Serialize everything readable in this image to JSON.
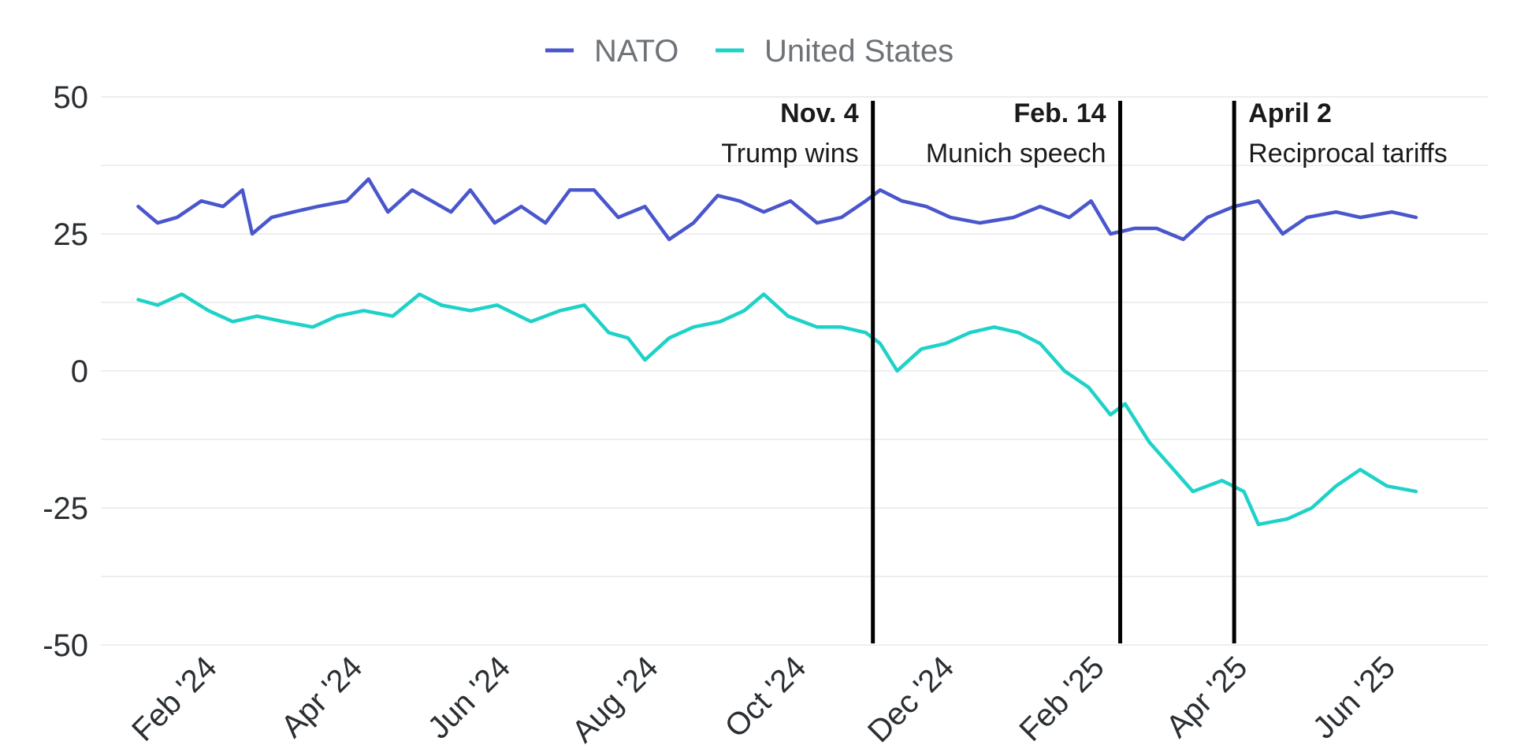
{
  "chart_data": {
    "type": "line",
    "title": "",
    "xlabel": "",
    "ylabel": "",
    "ylim": [
      -50,
      50
    ],
    "yticks": [
      50,
      25,
      0,
      -25,
      -50
    ],
    "ytick_labels": [
      "50",
      "25",
      "0",
      "-25",
      "-50"
    ],
    "xlim": [
      "2024-01-01",
      "2025-06-30"
    ],
    "xticks": [
      "2024-02-01",
      "2024-04-01",
      "2024-06-01",
      "2024-08-01",
      "2024-10-01",
      "2024-12-01",
      "2025-02-01",
      "2025-04-01",
      "2025-06-01"
    ],
    "xtick_labels": [
      "Feb '24",
      "Apr '24",
      "Jun '24",
      "Aug '24",
      "Oct '24",
      "Dec '24",
      "Feb '25",
      "Apr '25",
      "Jun '25"
    ],
    "grid": true,
    "legend_position": "top-center",
    "series": [
      {
        "name": "NATO",
        "color": "#4a56cc",
        "points": [
          [
            "2024-01-06",
            30
          ],
          [
            "2024-01-14",
            27
          ],
          [
            "2024-01-22",
            28
          ],
          [
            "2024-02-01",
            31
          ],
          [
            "2024-02-10",
            30
          ],
          [
            "2024-02-18",
            33
          ],
          [
            "2024-02-22",
            25
          ],
          [
            "2024-03-01",
            28
          ],
          [
            "2024-03-10",
            29
          ],
          [
            "2024-03-20",
            30
          ],
          [
            "2024-04-01",
            31
          ],
          [
            "2024-04-10",
            35
          ],
          [
            "2024-04-18",
            29
          ],
          [
            "2024-04-28",
            33
          ],
          [
            "2024-05-06",
            31
          ],
          [
            "2024-05-14",
            29
          ],
          [
            "2024-05-22",
            33
          ],
          [
            "2024-06-01",
            27
          ],
          [
            "2024-06-12",
            30
          ],
          [
            "2024-06-22",
            27
          ],
          [
            "2024-07-02",
            33
          ],
          [
            "2024-07-12",
            33
          ],
          [
            "2024-07-22",
            28
          ],
          [
            "2024-08-02",
            30
          ],
          [
            "2024-08-12",
            24
          ],
          [
            "2024-08-22",
            27
          ],
          [
            "2024-09-01",
            32
          ],
          [
            "2024-09-10",
            31
          ],
          [
            "2024-09-20",
            29
          ],
          [
            "2024-10-01",
            31
          ],
          [
            "2024-10-12",
            27
          ],
          [
            "2024-10-22",
            28
          ],
          [
            "2024-11-01",
            31
          ],
          [
            "2024-11-07",
            33
          ],
          [
            "2024-11-16",
            31
          ],
          [
            "2024-11-26",
            30
          ],
          [
            "2024-12-06",
            28
          ],
          [
            "2024-12-18",
            27
          ],
          [
            "2025-01-01",
            28
          ],
          [
            "2025-01-12",
            30
          ],
          [
            "2025-01-24",
            28
          ],
          [
            "2025-02-02",
            31
          ],
          [
            "2025-02-10",
            25
          ],
          [
            "2025-02-20",
            26
          ],
          [
            "2025-03-01",
            26
          ],
          [
            "2025-03-12",
            24
          ],
          [
            "2025-03-22",
            28
          ],
          [
            "2025-04-02",
            30
          ],
          [
            "2025-04-12",
            31
          ],
          [
            "2025-04-22",
            25
          ],
          [
            "2025-05-02",
            28
          ],
          [
            "2025-05-14",
            29
          ],
          [
            "2025-05-24",
            28
          ],
          [
            "2025-06-06",
            29
          ],
          [
            "2025-06-16",
            28
          ]
        ]
      },
      {
        "name": "United States",
        "color": "#1ed2c8",
        "points": [
          [
            "2024-01-06",
            13
          ],
          [
            "2024-01-14",
            12
          ],
          [
            "2024-01-24",
            14
          ],
          [
            "2024-02-04",
            11
          ],
          [
            "2024-02-14",
            9
          ],
          [
            "2024-02-24",
            10
          ],
          [
            "2024-03-06",
            9
          ],
          [
            "2024-03-18",
            8
          ],
          [
            "2024-03-28",
            10
          ],
          [
            "2024-04-08",
            11
          ],
          [
            "2024-04-20",
            10
          ],
          [
            "2024-05-01",
            14
          ],
          [
            "2024-05-10",
            12
          ],
          [
            "2024-05-22",
            11
          ],
          [
            "2024-06-02",
            12
          ],
          [
            "2024-06-16",
            9
          ],
          [
            "2024-06-28",
            11
          ],
          [
            "2024-07-08",
            12
          ],
          [
            "2024-07-18",
            7
          ],
          [
            "2024-07-26",
            6
          ],
          [
            "2024-08-02",
            2
          ],
          [
            "2024-08-12",
            6
          ],
          [
            "2024-08-22",
            8
          ],
          [
            "2024-09-02",
            9
          ],
          [
            "2024-09-12",
            11
          ],
          [
            "2024-09-20",
            14
          ],
          [
            "2024-09-30",
            10
          ],
          [
            "2024-10-12",
            8
          ],
          [
            "2024-10-22",
            8
          ],
          [
            "2024-11-01",
            7
          ],
          [
            "2024-11-07",
            5
          ],
          [
            "2024-11-14",
            0
          ],
          [
            "2024-11-24",
            4
          ],
          [
            "2024-12-04",
            5
          ],
          [
            "2024-12-14",
            7
          ],
          [
            "2024-12-24",
            8
          ],
          [
            "2025-01-03",
            7
          ],
          [
            "2025-01-12",
            5
          ],
          [
            "2025-01-22",
            0
          ],
          [
            "2025-02-01",
            -3
          ],
          [
            "2025-02-10",
            -8
          ],
          [
            "2025-02-16",
            -6
          ],
          [
            "2025-02-26",
            -13
          ],
          [
            "2025-03-06",
            -17
          ],
          [
            "2025-03-16",
            -22
          ],
          [
            "2025-03-28",
            -20
          ],
          [
            "2025-04-06",
            -22
          ],
          [
            "2025-04-12",
            -28
          ],
          [
            "2025-04-24",
            -27
          ],
          [
            "2025-05-04",
            -25
          ],
          [
            "2025-05-14",
            -21
          ],
          [
            "2025-05-24",
            -18
          ],
          [
            "2025-06-04",
            -21
          ],
          [
            "2025-06-16",
            -22
          ]
        ]
      }
    ],
    "events": [
      {
        "date": "2024-11-04",
        "label_date": "Nov. 4",
        "label": "Trump wins",
        "align": "right"
      },
      {
        "date": "2025-02-14",
        "label_date": "Feb. 14",
        "label": "Munich speech",
        "align": "right"
      },
      {
        "date": "2025-04-02",
        "label_date": "April 2",
        "label": "Reciprocal tariffs",
        "align": "left"
      }
    ]
  }
}
